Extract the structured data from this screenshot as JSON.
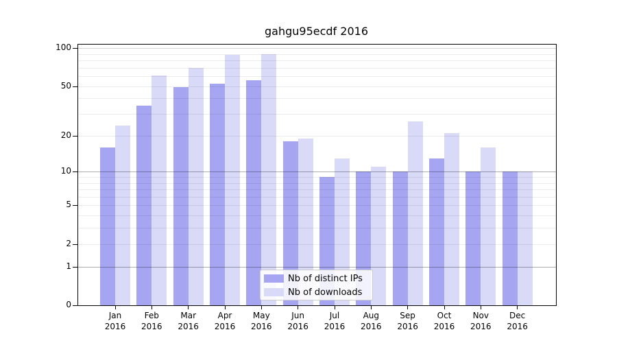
{
  "chart_data": {
    "type": "bar",
    "title": "gahgu95ecdf 2016",
    "categories": [
      {
        "label": "Jan",
        "sub": "2016"
      },
      {
        "label": "Feb",
        "sub": "2016"
      },
      {
        "label": "Mar",
        "sub": "2016"
      },
      {
        "label": "Apr",
        "sub": "2016"
      },
      {
        "label": "May",
        "sub": "2016"
      },
      {
        "label": "Jun",
        "sub": "2016"
      },
      {
        "label": "Jul",
        "sub": "2016"
      },
      {
        "label": "Aug",
        "sub": "2016"
      },
      {
        "label": "Sep",
        "sub": "2016"
      },
      {
        "label": "Oct",
        "sub": "2016"
      },
      {
        "label": "Nov",
        "sub": "2016"
      },
      {
        "label": "Dec",
        "sub": "2016"
      }
    ],
    "series": [
      {
        "name": "Nb of distinct IPs",
        "color": "#a5a5f2",
        "values": [
          16,
          35,
          49,
          52,
          56,
          18,
          9,
          10,
          10,
          13,
          10,
          10
        ]
      },
      {
        "name": "Nb of downloads",
        "color": "#d9d9f8",
        "values": [
          24,
          61,
          70,
          88,
          90,
          19,
          13,
          11,
          26,
          21,
          16,
          10
        ]
      }
    ],
    "y_axis": {
      "scale": "log10(x+1)",
      "ylim": [
        0,
        100
      ],
      "ticks": [
        0,
        1,
        2,
        5,
        10,
        20,
        50,
        100
      ],
      "gridlines_strong": [
        1,
        10
      ],
      "gridlines_medium": [
        100
      ],
      "gridlines_light": [
        2,
        3,
        4,
        5,
        6,
        7,
        8,
        9,
        20,
        30,
        40,
        50,
        60,
        70,
        80,
        90
      ]
    },
    "legend": {
      "position": "lower-center"
    },
    "grid": true
  }
}
